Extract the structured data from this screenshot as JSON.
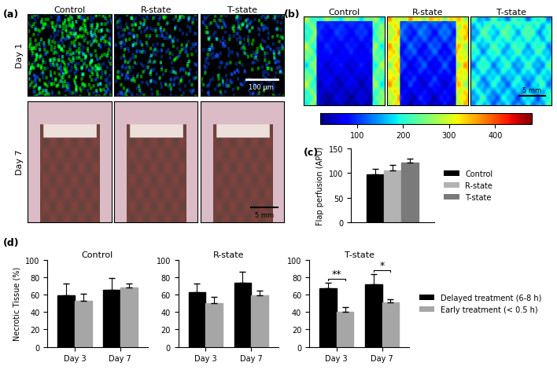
{
  "figure": {
    "panel_labels": [
      "(a)",
      "(b)",
      "(c)",
      "(d)"
    ]
  },
  "image_panels": {
    "a": {
      "columns": [
        "Control",
        "R-state",
        "T-state"
      ],
      "rows": [
        "Day 1",
        "Day 7"
      ],
      "scale_bars": [
        "100 µm",
        "5 mm"
      ]
    },
    "b": {
      "columns": [
        "Control",
        "R-state",
        "T-state"
      ],
      "scale_bar": "5 mm",
      "colorbar": {
        "range": [
          20,
          480
        ],
        "ticks": [
          100,
          200,
          300,
          400
        ]
      }
    }
  },
  "chart_data": [
    {
      "type": "bar",
      "y_label": "Flap perfusion (APU)",
      "categories": [
        null
      ],
      "series": [
        {
          "name": "Control",
          "color": "#000000",
          "values": [
            97
          ],
          "error": [
            11
          ]
        },
        {
          "name": "R-state",
          "color": "#b3b3b3",
          "values": [
            106
          ],
          "error": [
            10
          ]
        },
        {
          "name": "T-state",
          "color": "#7a7a7a",
          "values": [
            121
          ],
          "error": [
            8
          ]
        }
      ],
      "ylim": [
        0,
        150
      ],
      "yticks": [
        0,
        50,
        100,
        150
      ],
      "tick_labels": "y",
      "legend": "right"
    },
    {
      "type": "bar",
      "title": "Control",
      "y_label": "Necrotic Tissue (%)",
      "categories": [
        "Day 3",
        "Day 7"
      ],
      "series": [
        {
          "name": "Delayed treatment (6-8 h)",
          "color": "#000000",
          "values": [
            59,
            66
          ],
          "error": [
            14,
            13
          ]
        },
        {
          "name": "Early treatment (< 0.5 h)",
          "color": "#a6a6a6",
          "values": [
            53,
            68
          ],
          "error": [
            8,
            5
          ]
        }
      ],
      "ylim": [
        0,
        100
      ],
      "yticks": [
        0,
        20,
        40,
        60,
        80,
        100
      ]
    },
    {
      "type": "bar",
      "title": "R-state",
      "categories": [
        "Day 3",
        "Day 7"
      ],
      "series": [
        {
          "name": "Delayed treatment (6-8 h)",
          "color": "#000000",
          "values": [
            63,
            74
          ],
          "error": [
            10,
            12
          ]
        },
        {
          "name": "Early treatment (< 0.5 h)",
          "color": "#a6a6a6",
          "values": [
            50,
            59
          ],
          "error": [
            7,
            6
          ]
        }
      ],
      "ylim": [
        0,
        100
      ],
      "yticks": [
        0,
        20,
        40,
        60,
        80,
        100
      ]
    },
    {
      "type": "bar",
      "title": "T-state",
      "categories": [
        "Day 3",
        "Day 7"
      ],
      "series": [
        {
          "name": "Delayed treatment (6-8 h)",
          "color": "#000000",
          "values": [
            67,
            72
          ],
          "error": [
            7,
            12
          ]
        },
        {
          "name": "Early treatment (< 0.5 h)",
          "color": "#a6a6a6",
          "values": [
            40,
            51
          ],
          "error": [
            6,
            4
          ]
        }
      ],
      "ylim": [
        0,
        100
      ],
      "yticks": [
        0,
        20,
        40,
        60,
        80,
        100
      ],
      "legend": "right",
      "annotations": [
        {
          "text": "**",
          "category": "Day 3"
        },
        {
          "text": "*",
          "category": "Day 7"
        }
      ]
    }
  ]
}
